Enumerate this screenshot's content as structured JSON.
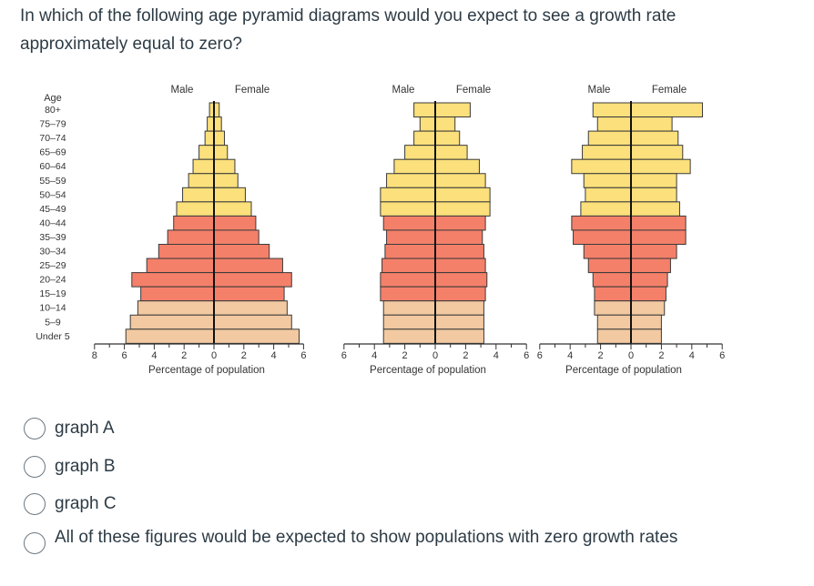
{
  "question": "In which of the following age pyramid diagrams would you expect to see a growth rate approximately equal to zero?",
  "age_axis_title": "Age",
  "age_groups": [
    "80+",
    "75–79",
    "70–74",
    "65–69",
    "60–64",
    "55–59",
    "50–54",
    "45–49",
    "40–44",
    "35–39",
    "30–34",
    "25–29",
    "20–24",
    "15–19",
    "10–14",
    "5–9",
    "Under 5"
  ],
  "colors": {
    "post_reproductive": "#fbe07b",
    "reproductive": "#f4806a",
    "pre_reproductive": "#f2c9a1",
    "outline": "#3a3a3a"
  },
  "chart_data": [
    {
      "type": "bar",
      "orientation": "horizontal-pyramid",
      "legend": [
        "Male",
        "Female"
      ],
      "xlabel": "Percentage of population",
      "xlim_male": [
        0,
        8
      ],
      "xlim_female": [
        0,
        6
      ],
      "male_ticks": [
        "8",
        "6",
        "4",
        "2",
        "0"
      ],
      "female_ticks": [
        "2",
        "4",
        "6"
      ],
      "male": [
        0.3,
        0.45,
        0.6,
        1.0,
        1.4,
        1.7,
        2.1,
        2.5,
        2.7,
        3.1,
        3.7,
        4.5,
        5.5,
        4.9,
        5.1,
        5.6,
        5.9
      ],
      "female": [
        0.35,
        0.5,
        0.7,
        0.9,
        1.4,
        1.6,
        2.1,
        2.5,
        2.8,
        3.0,
        3.7,
        4.6,
        5.2,
        4.7,
        4.9,
        5.2,
        5.7
      ]
    },
    {
      "type": "bar",
      "orientation": "horizontal-pyramid",
      "legend": [
        "Male",
        "Female"
      ],
      "xlabel": "Percentage of population",
      "xlim_male": [
        0,
        6
      ],
      "xlim_female": [
        0,
        6
      ],
      "male_ticks": [
        "6",
        "4",
        "2",
        "0"
      ],
      "female_ticks": [
        "2",
        "4",
        "6"
      ],
      "male": [
        1.4,
        1.0,
        1.4,
        2.0,
        2.7,
        3.2,
        3.6,
        3.6,
        3.4,
        3.2,
        3.3,
        3.5,
        3.6,
        3.6,
        3.4,
        3.4,
        3.4
      ],
      "female": [
        2.3,
        1.3,
        1.6,
        2.1,
        2.9,
        3.3,
        3.6,
        3.6,
        3.3,
        3.1,
        3.2,
        3.3,
        3.4,
        3.3,
        3.2,
        3.2,
        3.2
      ]
    },
    {
      "type": "bar",
      "orientation": "horizontal-pyramid",
      "legend": [
        "Male",
        "Female"
      ],
      "xlabel": "Percentage of population",
      "xlim_male": [
        0,
        6
      ],
      "xlim_female": [
        0,
        6
      ],
      "male_ticks": [
        "6",
        "4",
        "2",
        "0"
      ],
      "female_ticks": [
        "2",
        "4",
        "6"
      ],
      "male": [
        2.5,
        2.2,
        2.8,
        3.2,
        3.9,
        3.1,
        3.0,
        3.3,
        3.9,
        3.8,
        3.1,
        2.8,
        2.5,
        2.4,
        2.4,
        2.2,
        2.2
      ],
      "female": [
        4.7,
        2.7,
        3.1,
        3.4,
        3.9,
        3.0,
        3.0,
        3.2,
        3.6,
        3.6,
        3.0,
        2.6,
        2.4,
        2.3,
        2.2,
        2.0,
        2.0
      ]
    }
  ],
  "options": [
    {
      "label": "graph A"
    },
    {
      "label": "graph B"
    },
    {
      "label": "graph C"
    },
    {
      "label": "All of these figures would be expected to show populations with zero growth rates"
    }
  ]
}
